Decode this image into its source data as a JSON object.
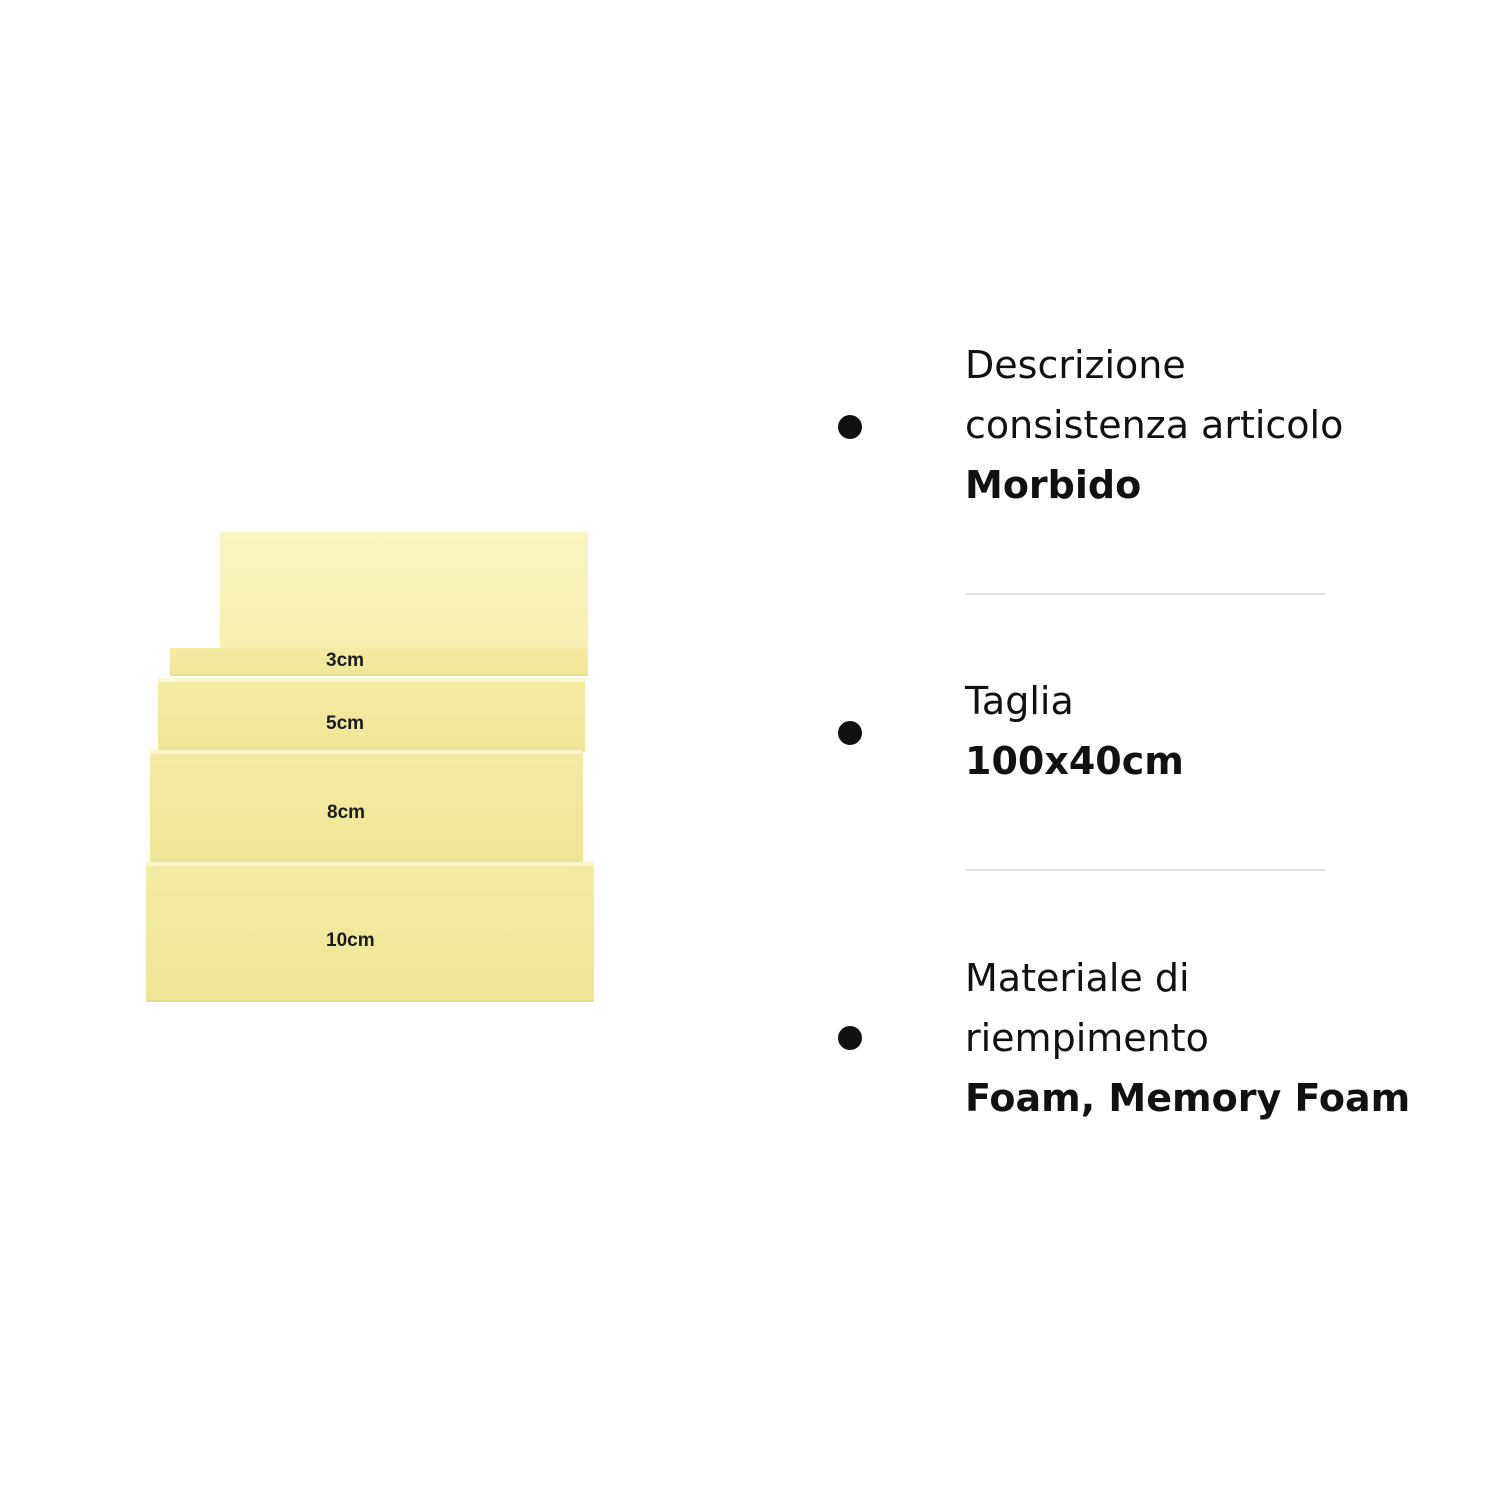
{
  "foam_layers": [
    {
      "label": "3cm"
    },
    {
      "label": "5cm"
    },
    {
      "label": "8cm"
    },
    {
      "label": "10cm"
    }
  ],
  "specs": [
    {
      "label_lines": [
        "Descrizione",
        "consistenza articolo"
      ],
      "value": "Morbido"
    },
    {
      "label_lines": [
        "Taglia"
      ],
      "value": "100x40cm"
    },
    {
      "label_lines": [
        "Materiale di",
        "riempimento"
      ],
      "value": "Foam, Memory Foam"
    }
  ],
  "colors": {
    "foam": "#f4eca4",
    "text": "#111111",
    "divider": "#e3e3e3"
  }
}
